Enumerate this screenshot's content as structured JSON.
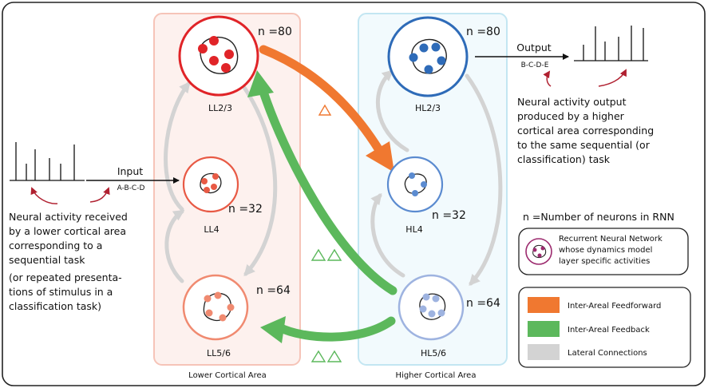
{
  "areas": {
    "lower": "Lower Cortical Area",
    "higher": "Higher Cortical Area"
  },
  "layers": {
    "ll23": {
      "label": "LL2/3",
      "n": "n =80"
    },
    "ll4": {
      "label": "LL4",
      "n": "n =32"
    },
    "ll56": {
      "label": "LL5/6",
      "n": "n =64"
    },
    "hl23": {
      "label": "HL2/3",
      "n": "n =80"
    },
    "hl4": {
      "label": "HL4",
      "n": "n =32"
    },
    "hl56": {
      "label": "HL5/6",
      "n": "n =64"
    }
  },
  "input": {
    "label": "Input",
    "sequence": "A-B-C-D"
  },
  "output": {
    "label": "Output",
    "sequence": "B-C-D-E"
  },
  "left_description": [
    "Neural activity received",
    "by a lower cortical area",
    "corresponding to a",
    "sequential task",
    "(or repeated  presenta-",
    "tions of stimulus in a",
    "classification task)"
  ],
  "right_description": [
    "Neural activity output",
    "produced by a higher",
    "cortical area corresponding",
    "to the same sequential (or",
    "classification) task"
  ],
  "n_definition": "n =Number of neurons in RNN",
  "rnn_legend": [
    "Recurrent Neural Network",
    "whose dynamics model",
    "layer specific activities"
  ],
  "legend": [
    {
      "label": "Inter-Areal Feedforward",
      "color": "#f07830"
    },
    {
      "label": "Inter-Areal Feedback",
      "color": "#5cb85c"
    },
    {
      "label": "Lateral Connections",
      "color": "#d3d3d3"
    }
  ],
  "colors": {
    "lower_box": "#f6c4b8",
    "higher_box": "#c3e6f2",
    "ll23": "#e02428",
    "ll4": "#e85a45",
    "ll56": "#f08a70",
    "hl23": "#2e6bb8",
    "hl4": "#5b8bd0",
    "hl56": "#9eb3e0",
    "feedforward": "#f07830",
    "feedback": "#5cb85c",
    "lateral": "#d3d3d3",
    "red_arrow": "#b02030"
  }
}
